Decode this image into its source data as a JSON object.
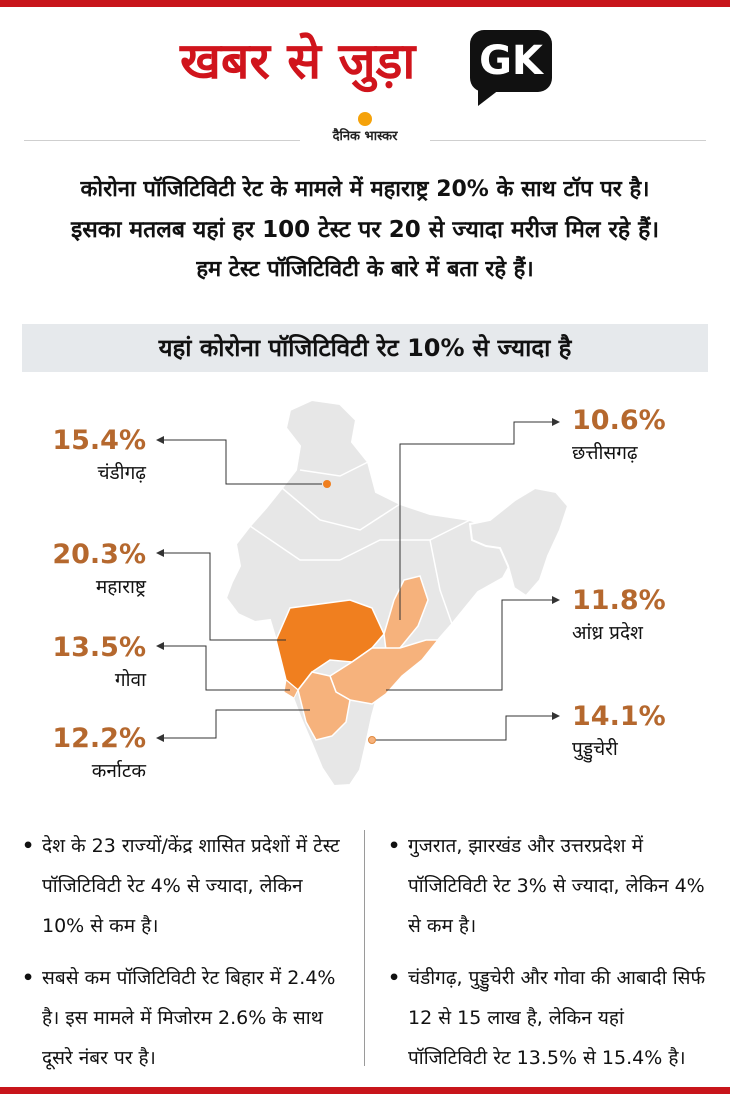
{
  "header": {
    "title": "खबर से जुड़ा",
    "badge": "GK"
  },
  "logo": {
    "text": "दैनिक भास्कर"
  },
  "intro": {
    "line1": "कोरोना पॉजिटिविटी रेट के मामले में महाराष्ट्र 20% के साथ टॉप पर है।",
    "line2": "इसका मतलब यहां हर 100 टेस्ट पर 20 से ज्यादा मरीज मिल रहे हैं।",
    "line3": "हम टेस्ट पॉजिटिविटी के बारे में बता रहे हैं।"
  },
  "section": {
    "title": "यहां कोरोना पॉजिटिविटी रेट 10% से ज्यादा है"
  },
  "colors": {
    "accent": "#c8151b",
    "pct": "#b5682e",
    "high": "#f07f1f",
    "mid": "#f6b27c",
    "map": "#e7e7e7"
  },
  "states": [
    {
      "pct": "15.4%",
      "name": "चंडीगढ़"
    },
    {
      "pct": "20.3%",
      "name": "महाराष्ट्र"
    },
    {
      "pct": "13.5%",
      "name": "गोवा"
    },
    {
      "pct": "12.2%",
      "name": "कर्नाटक"
    },
    {
      "pct": "10.6%",
      "name": "छत्तीसगढ़"
    },
    {
      "pct": "11.8%",
      "name": "आंध्र प्रदेश"
    },
    {
      "pct": "14.1%",
      "name": "पुड्डुचेरी"
    }
  ],
  "notes": {
    "left": [
      "देश के 23 राज्यों/केंद्र शासित प्रदेशों में टेस्ट पॉजिटिविटी रेट 4% से ज्यादा, लेकिन 10% से कम है।",
      "सबसे कम पॉजिटिविटी रेट बिहार में 2.4% है। इस मामले में मिजोरम 2.6% के साथ दूसरे नंबर पर है।"
    ],
    "right": [
      "गुजरात, झारखंड और उत्तरप्रदेश में पॉजिटिविटी रेट 3% से ज्यादा, लेकिन 4% से कम है।",
      "चंडीगढ़, पुड्डुचेरी और गोवा की आबादी सिर्फ 12 से 15 लाख है, लेकिन यहां पॉजिटिविटी रेट 13.5% से 15.4% है।"
    ]
  }
}
